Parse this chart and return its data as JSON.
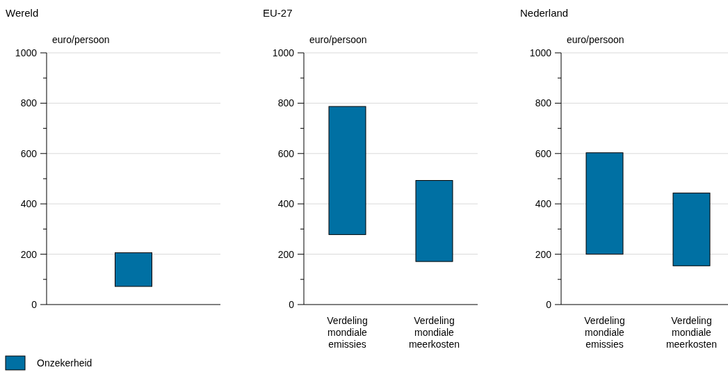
{
  "chart_data": [
    {
      "type": "bar",
      "title": "Wereld",
      "ylabel": "euro/persoon",
      "categories": [
        null
      ],
      "ylim": [
        0,
        1000
      ],
      "yticks": [
        0,
        {
          "value": 100,
          "label": null
        },
        200,
        {
          "value": 300,
          "label": null
        },
        400,
        {
          "value": 500,
          "label": null
        },
        600,
        {
          "value": 700,
          "label": null
        },
        800,
        {
          "value": 900,
          "label": null
        },
        1000
      ],
      "grid": "y",
      "legend": "bottom left",
      "series": [
        {
          "name": "Onzekerheid",
          "color": "#0070a3",
          "base": [
            72
          ],
          "values": [
            134
          ]
        }
      ]
    },
    {
      "type": "bar",
      "title": "EU-27",
      "ylabel": "euro/persoon",
      "categories": [
        "Verdeling mondiale emissies",
        "Verdeling mondiale meerkosten"
      ],
      "ylim": [
        0,
        1000
      ],
      "yticks": [
        0,
        {
          "value": 100,
          "label": null
        },
        200,
        {
          "value": 300,
          "label": null
        },
        400,
        {
          "value": 500,
          "label": null
        },
        600,
        {
          "value": 700,
          "label": null
        },
        800,
        {
          "value": 900,
          "label": null
        },
        1000
      ],
      "grid": "y",
      "series": [
        {
          "color": "#0070a3",
          "base": [
            278,
            171
          ],
          "values": [
            509,
            322
          ]
        }
      ]
    },
    {
      "type": "bar",
      "title": "Nederland",
      "ylabel": "euro/persoon",
      "categories": [
        "Verdeling mondiale emissies",
        "Verdeling mondiale meerkosten"
      ],
      "ylim": [
        0,
        1000
      ],
      "yticks": [
        0,
        {
          "value": 100,
          "label": null
        },
        200,
        {
          "value": 300,
          "label": null
        },
        400,
        {
          "value": 500,
          "label": null
        },
        600,
        {
          "value": 700,
          "label": null
        },
        800,
        {
          "value": 900,
          "label": null
        },
        1000
      ],
      "grid": "y",
      "series": [
        {
          "color": "#0070a3",
          "base": [
            200,
            154
          ],
          "values": [
            403,
            289
          ]
        }
      ]
    }
  ]
}
